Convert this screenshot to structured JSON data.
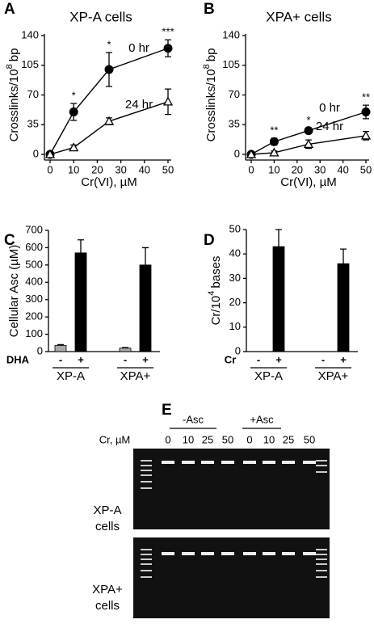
{
  "chart_data": [
    {
      "panel": "A",
      "type": "line",
      "title": "XP-A cells",
      "ylabel": [
        "Crosslinks/10",
        "8",
        "bp"
      ],
      "xlabel": "Cr(VI), µM",
      "x": [
        0,
        10,
        25,
        50
      ],
      "xlim": [
        0,
        50
      ],
      "xticks": [
        0,
        10,
        20,
        30,
        40,
        50
      ],
      "ylim": [
        0,
        140
      ],
      "yticks": [
        0,
        35,
        70,
        105,
        140
      ],
      "series": [
        {
          "name": "0 hr",
          "color": "#000",
          "marker": "circle",
          "values": [
            0,
            50,
            100,
            125
          ],
          "errors": [
            0,
            10,
            20,
            10
          ]
        },
        {
          "name": "24 hr",
          "color": "#000",
          "marker": "triangle",
          "values": [
            0,
            8,
            39,
            62
          ],
          "errors": [
            0,
            3,
            4,
            15
          ]
        }
      ],
      "annotations": [
        {
          "text": "*",
          "x": 10
        },
        {
          "text": "*",
          "x": 25
        },
        {
          "text": "***",
          "x": 50
        }
      ]
    },
    {
      "panel": "B",
      "type": "line",
      "title": "XPA+ cells",
      "ylabel": [
        "Crosslinks/10",
        "8",
        "bp"
      ],
      "xlabel": "Cr(VI), µM",
      "x": [
        0,
        10,
        25,
        50
      ],
      "xlim": [
        0,
        50
      ],
      "xticks": [
        0,
        10,
        20,
        30,
        40,
        50
      ],
      "ylim": [
        0,
        140
      ],
      "yticks": [
        0,
        35,
        70,
        105,
        140
      ],
      "series": [
        {
          "name": "0 hr",
          "color": "#000",
          "marker": "circle",
          "values": [
            0,
            15,
            28,
            50
          ],
          "errors": [
            0,
            4,
            3,
            8
          ]
        },
        {
          "name": "24 hr",
          "color": "#000",
          "marker": "triangle",
          "values": [
            0,
            2,
            12,
            22
          ],
          "errors": [
            0,
            2,
            5,
            5
          ]
        }
      ],
      "annotations": [
        {
          "text": "**",
          "x": 10
        },
        {
          "text": "*",
          "x": 25
        },
        {
          "text": "**",
          "x": 50
        }
      ]
    },
    {
      "panel": "C",
      "type": "bar",
      "ylabel": [
        "Cellular Asc (µM)"
      ],
      "treatment": "DHA",
      "categories": [
        "-",
        "+",
        "-",
        "+"
      ],
      "groups": [
        "XP-A",
        "XPA+"
      ],
      "values": [
        35,
        570,
        20,
        500
      ],
      "errors": [
        5,
        75,
        3,
        100
      ],
      "colors": [
        "#aaaaaa",
        "#000000",
        "#aaaaaa",
        "#000000"
      ],
      "ylim": [
        0,
        700
      ],
      "yticks": [
        0,
        100,
        200,
        300,
        400,
        500,
        600,
        700
      ]
    },
    {
      "panel": "D",
      "type": "bar",
      "ylabel": [
        "Cr/10",
        "4",
        "bases"
      ],
      "treatment": "Cr",
      "categories": [
        "-",
        "+",
        "-",
        "+"
      ],
      "groups": [
        "XP-A",
        "XPA+"
      ],
      "values": [
        0,
        43,
        0,
        36
      ],
      "errors": [
        0,
        7,
        0,
        6
      ],
      "colors": [
        "#000000",
        "#000000",
        "#000000",
        "#000000"
      ],
      "ylim": [
        0,
        50
      ],
      "yticks": [
        0,
        10,
        20,
        30,
        40,
        50
      ]
    }
  ],
  "gel": {
    "panel": "E",
    "conditions": [
      "-Asc",
      "+Asc"
    ],
    "dose_label": "Cr, µM",
    "lanes": [
      "0",
      "10",
      "25",
      "50",
      "0",
      "10",
      "25",
      "50"
    ],
    "rows": [
      [
        "XP-A",
        "cells"
      ],
      [
        "XPA+",
        "cells"
      ]
    ]
  }
}
